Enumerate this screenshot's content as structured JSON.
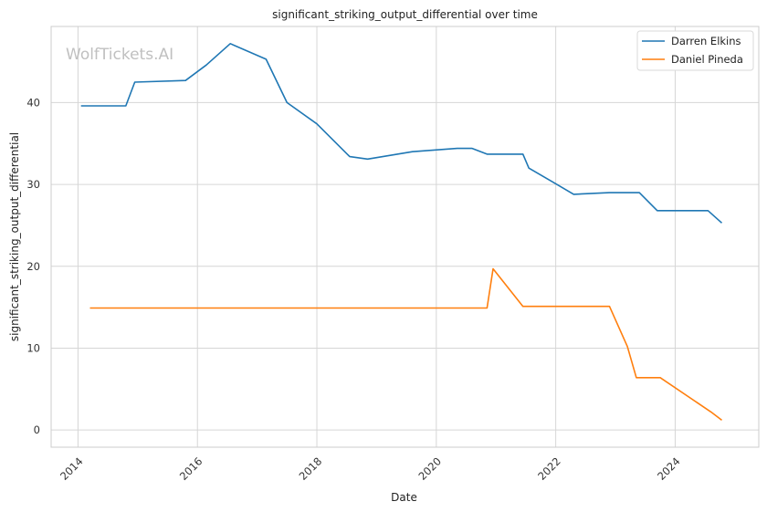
{
  "colors": {
    "Darren Elkins": "#1f77b4",
    "Daniel Pineda": "#ff7f0e",
    "grid": "#d6d6d6",
    "frame": "#cccccc"
  },
  "watermark": "WolfTickets.AI",
  "chart_data": {
    "type": "line",
    "title": "significant_striking_output_differential over time",
    "xlabel": "Date",
    "ylabel": "significant_striking_output_differential",
    "xlim": [
      2013.55,
      2025.4
    ],
    "ylim": [
      -2.1,
      49.3
    ],
    "xticks": [
      2014,
      2016,
      2018,
      2020,
      2022,
      2024
    ],
    "yticks": [
      0,
      10,
      20,
      30,
      40
    ],
    "grid": true,
    "legend_position": "top-right",
    "series": [
      {
        "name": "Darren Elkins",
        "x": [
          2014.05,
          2014.8,
          2014.95,
          2015.8,
          2016.15,
          2016.55,
          2017.15,
          2017.5,
          2018.0,
          2018.55,
          2018.85,
          2019.6,
          2020.35,
          2020.6,
          2020.85,
          2021.45,
          2021.55,
          2021.95,
          2022.3,
          2022.9,
          2023.4,
          2023.7,
          2024.55,
          2024.78
        ],
        "y": [
          39.6,
          39.6,
          42.5,
          42.7,
          44.6,
          47.2,
          45.3,
          40.0,
          37.4,
          33.4,
          33.1,
          34.0,
          34.4,
          34.4,
          33.7,
          33.7,
          32.0,
          30.3,
          28.8,
          29.0,
          29.0,
          26.8,
          26.8,
          25.3
        ]
      },
      {
        "name": "Daniel Pineda",
        "x": [
          2014.2,
          2020.85,
          2020.95,
          2021.45,
          2022.9,
          2023.2,
          2023.35,
          2023.75,
          2024.6,
          2024.78
        ],
        "y": [
          14.9,
          14.9,
          19.7,
          15.1,
          15.1,
          10.2,
          6.4,
          6.4,
          2.2,
          1.2
        ]
      }
    ]
  }
}
